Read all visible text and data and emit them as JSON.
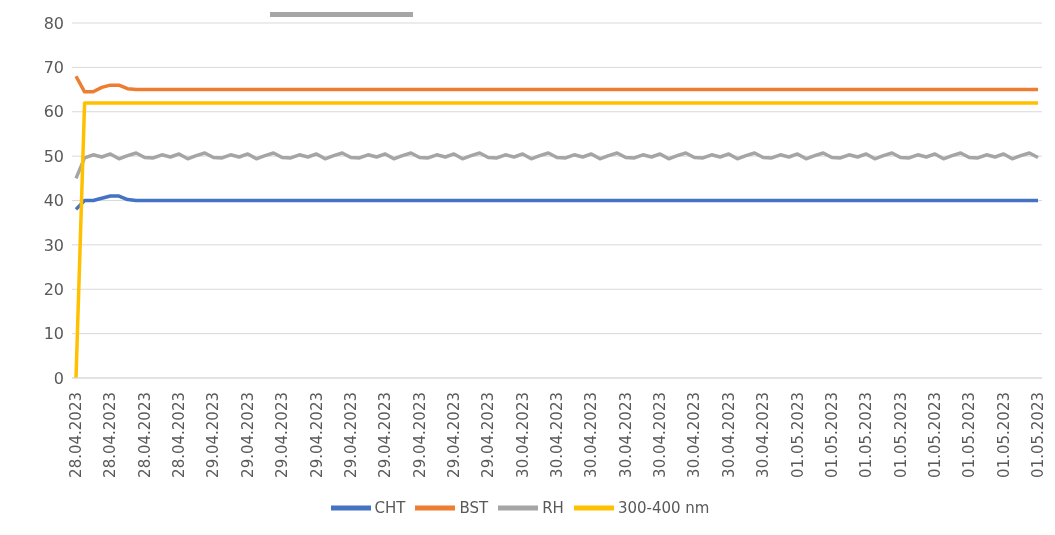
{
  "chart_data": {
    "type": "line",
    "categories": [
      "28.04.2023",
      null,
      null,
      null,
      "28.04.2023",
      null,
      null,
      null,
      "28.04.2023",
      null,
      null,
      null,
      "28.04.2023",
      null,
      null,
      null,
      "29.04.2023",
      null,
      null,
      null,
      "29.04.2023",
      null,
      null,
      null,
      "29.04.2023",
      null,
      null,
      null,
      "29.04.2023",
      null,
      null,
      null,
      "29.04.2023",
      null,
      null,
      null,
      "29.04.2023",
      null,
      null,
      null,
      "29.04.2023",
      null,
      null,
      null,
      "29.04.2023",
      null,
      null,
      null,
      "29.04.2023",
      null,
      null,
      null,
      "30.04.2023",
      null,
      null,
      null,
      "30.04.2023",
      null,
      null,
      null,
      "30.04.2023",
      null,
      null,
      null,
      "30.04.2023",
      null,
      null,
      null,
      "30.04.2023",
      null,
      null,
      null,
      "30.04.2023",
      null,
      null,
      null,
      "30.04.2023",
      null,
      null,
      null,
      "30.04.2023",
      null,
      null,
      null,
      "01.05.2023",
      null,
      null,
      null,
      "01.05.2023",
      null,
      null,
      null,
      "01.05.2023",
      null,
      null,
      null,
      "01.05.2023",
      null,
      null,
      null,
      "01.05.2023",
      null,
      null,
      null,
      "01.05.2023",
      null,
      null,
      null,
      "01.05.2023",
      null,
      null,
      null,
      "01.05.2023"
    ],
    "series": [
      {
        "name": "CHT",
        "color": "#4472c4",
        "values": [
          38,
          40,
          40,
          40.5,
          41,
          41,
          40.2,
          40,
          40,
          40,
          40,
          40,
          40,
          40,
          40,
          40,
          40,
          40,
          40,
          40,
          40,
          40,
          40,
          40,
          40,
          40,
          40,
          40,
          40,
          40,
          40,
          40,
          40,
          40,
          40,
          40,
          40,
          40,
          40,
          40,
          40,
          40,
          40,
          40,
          40,
          40,
          40,
          40,
          40,
          40,
          40,
          40,
          40,
          40,
          40,
          40,
          40,
          40,
          40,
          40,
          40,
          40,
          40,
          40,
          40,
          40,
          40,
          40,
          40,
          40,
          40,
          40,
          40,
          40,
          40,
          40,
          40,
          40,
          40,
          40,
          40,
          40,
          40,
          40,
          40,
          40,
          40,
          40,
          40,
          40,
          40,
          40,
          40,
          40,
          40,
          40,
          40,
          40,
          40,
          40,
          40,
          40,
          40,
          40,
          40,
          40,
          40,
          40,
          40,
          40,
          40,
          40,
          40
        ]
      },
      {
        "name": "BST",
        "color": "#ed7d31",
        "values": [
          68,
          64.5,
          64.5,
          65.5,
          66,
          66,
          65.2,
          65,
          65,
          65,
          65,
          65,
          65,
          65,
          65,
          65,
          65,
          65,
          65,
          65,
          65,
          65,
          65,
          65,
          65,
          65,
          65,
          65,
          65,
          65,
          65,
          65,
          65,
          65,
          65,
          65,
          65,
          65,
          65,
          65,
          65,
          65,
          65,
          65,
          65,
          65,
          65,
          65,
          65,
          65,
          65,
          65,
          65,
          65,
          65,
          65,
          65,
          65,
          65,
          65,
          65,
          65,
          65,
          65,
          65,
          65,
          65,
          65,
          65,
          65,
          65,
          65,
          65,
          65,
          65,
          65,
          65,
          65,
          65,
          65,
          65,
          65,
          65,
          65,
          65,
          65,
          65,
          65,
          65,
          65,
          65,
          65,
          65,
          65,
          65,
          65,
          65,
          65,
          65,
          65,
          65,
          65,
          65,
          65,
          65,
          65,
          65,
          65,
          65,
          65,
          65,
          65,
          65
        ]
      },
      {
        "name": "RH",
        "color": "#a5a5a5",
        "values": [
          45,
          49.6,
          50.3,
          49.8,
          50.5,
          49.4,
          50.1,
          50.7,
          49.7,
          49.6,
          50.3,
          49.8,
          50.5,
          49.4,
          50.1,
          50.7,
          49.7,
          49.6,
          50.3,
          49.8,
          50.5,
          49.4,
          50.1,
          50.7,
          49.7,
          49.6,
          50.3,
          49.8,
          50.5,
          49.4,
          50.1,
          50.7,
          49.7,
          49.6,
          50.3,
          49.8,
          50.5,
          49.4,
          50.1,
          50.7,
          49.7,
          49.6,
          50.3,
          49.8,
          50.5,
          49.4,
          50.1,
          50.7,
          49.7,
          49.6,
          50.3,
          49.8,
          50.5,
          49.4,
          50.1,
          50.7,
          49.7,
          49.6,
          50.3,
          49.8,
          50.5,
          49.4,
          50.1,
          50.7,
          49.7,
          49.6,
          50.3,
          49.8,
          50.5,
          49.4,
          50.1,
          50.7,
          49.7,
          49.6,
          50.3,
          49.8,
          50.5,
          49.4,
          50.1,
          50.7,
          49.7,
          49.6,
          50.3,
          49.8,
          50.5,
          49.4,
          50.1,
          50.7,
          49.7,
          49.6,
          50.3,
          49.8,
          50.5,
          49.4,
          50.1,
          50.7,
          49.7,
          49.6,
          50.3,
          49.8,
          50.5,
          49.4,
          50.1,
          50.7,
          49.7,
          49.6,
          50.3,
          49.8,
          50.5,
          49.4,
          50.1,
          50.7,
          49.7
        ]
      },
      {
        "name": "300-400 nm",
        "color": "#ffc000",
        "values": [
          0,
          62,
          62,
          62,
          62,
          62,
          62,
          62,
          62,
          62,
          62,
          62,
          62,
          62,
          62,
          62,
          62,
          62,
          62,
          62,
          62,
          62,
          62,
          62,
          62,
          62,
          62,
          62,
          62,
          62,
          62,
          62,
          62,
          62,
          62,
          62,
          62,
          62,
          62,
          62,
          62,
          62,
          62,
          62,
          62,
          62,
          62,
          62,
          62,
          62,
          62,
          62,
          62,
          62,
          62,
          62,
          62,
          62,
          62,
          62,
          62,
          62,
          62,
          62,
          62,
          62,
          62,
          62,
          62,
          62,
          62,
          62,
          62,
          62,
          62,
          62,
          62,
          62,
          62,
          62,
          62,
          62,
          62,
          62,
          62,
          62,
          62,
          62,
          62,
          62,
          62,
          62,
          62,
          62,
          62,
          62,
          62,
          62,
          62,
          62,
          62,
          62,
          62,
          62,
          62,
          62,
          62,
          62,
          62,
          62,
          62,
          62,
          62
        ]
      }
    ],
    "ylim": [
      0,
      80
    ],
    "yticks": [
      0,
      10,
      20,
      30,
      40,
      50,
      60,
      70,
      80
    ],
    "grid": "y",
    "legend": "bottom",
    "marker": "none",
    "line_style": "solid"
  }
}
